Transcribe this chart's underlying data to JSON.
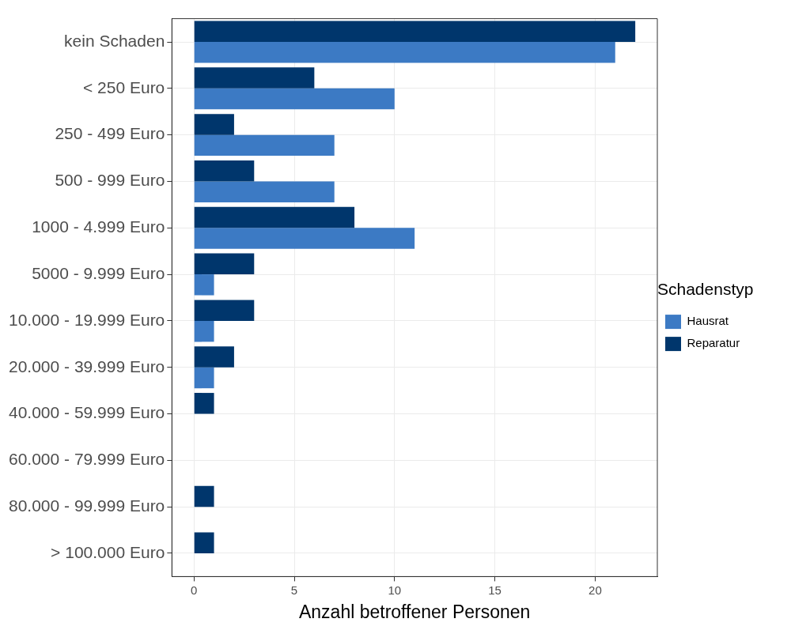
{
  "chart_data": {
    "type": "bar",
    "orientation": "horizontal",
    "xlabel": "Anzahl betroffener Personen",
    "legend_title": "Schadenstyp",
    "legend": "right",
    "grid": true,
    "categories": [
      "kein Schaden",
      "< 250 Euro",
      "250 - 499 Euro",
      "500 - 999 Euro",
      "1000 - 4.999 Euro",
      "5000 - 9.999 Euro",
      "10.000 - 19.999 Euro",
      "20.000 - 39.999 Euro",
      "40.000 - 59.999 Euro",
      "60.000 - 79.999 Euro",
      "80.000 - 99.999 Euro",
      "> 100.000 Euro"
    ],
    "series": [
      {
        "name": "Hausrat",
        "color": "#3c7ac4",
        "values": [
          21,
          10,
          7,
          7,
          11,
          1,
          1,
          1,
          null,
          null,
          null,
          null
        ]
      },
      {
        "name": "Reparatur",
        "color": "#00366c",
        "values": [
          22,
          6,
          2,
          3,
          8,
          3,
          3,
          2,
          1,
          null,
          1,
          1
        ]
      }
    ],
    "xlim": [
      -1.1,
      23.1
    ],
    "xticks": [
      0,
      5,
      10,
      15,
      20
    ]
  }
}
